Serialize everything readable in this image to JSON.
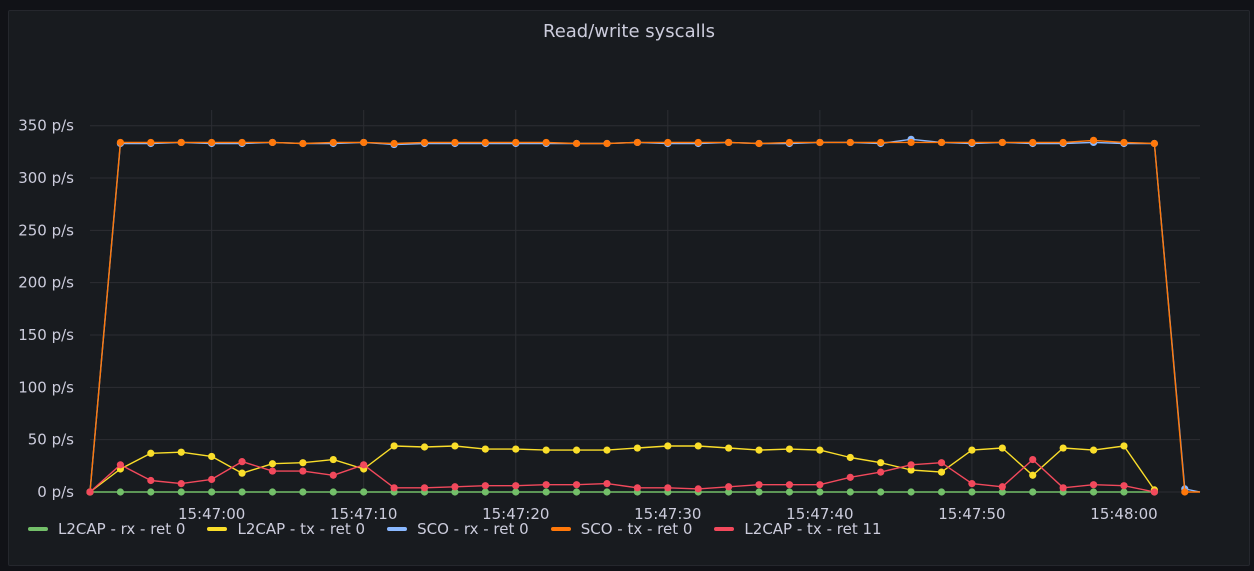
{
  "chart_data": {
    "type": "line",
    "title": "Read/write syscalls",
    "ylim": [
      0,
      365
    ],
    "y_ticks": [
      "0 p/s",
      "50 p/s",
      "100 p/s",
      "150 p/s",
      "200 p/s",
      "250 p/s",
      "300 p/s",
      "350 p/s"
    ],
    "y_tick_values": [
      0,
      50,
      100,
      150,
      200,
      250,
      300,
      350
    ],
    "x_start": "15:46:52",
    "x_end": "15:48:05",
    "x_ticks": [
      "15:47:00",
      "15:47:10",
      "15:47:20",
      "15:47:30",
      "15:47:40",
      "15:47:50",
      "15:48:00"
    ],
    "x_tick_values": [
      "15:47:00",
      "15:47:10",
      "15:47:20",
      "15:47:30",
      "15:47:40",
      "15:47:50",
      "15:48:00"
    ],
    "x": [
      "15:46:52",
      "15:46:54",
      "15:46:56",
      "15:46:58",
      "15:47:00",
      "15:47:02",
      "15:47:04",
      "15:47:06",
      "15:47:08",
      "15:47:10",
      "15:47:12",
      "15:47:14",
      "15:47:16",
      "15:47:18",
      "15:47:20",
      "15:47:22",
      "15:47:24",
      "15:47:26",
      "15:47:28",
      "15:47:30",
      "15:47:32",
      "15:47:34",
      "15:47:36",
      "15:47:38",
      "15:47:40",
      "15:47:42",
      "15:47:44",
      "15:47:46",
      "15:47:48",
      "15:47:50",
      "15:47:52",
      "15:47:54",
      "15:47:56",
      "15:47:58",
      "15:48:00",
      "15:48:02",
      "15:48:04"
    ],
    "grid": true,
    "legend_position": "bottom-left",
    "series": [
      {
        "name": "L2CAP - rx - ret 0",
        "color": "#73bf69",
        "values": [
          0,
          0,
          0,
          0,
          0,
          0,
          0,
          0,
          0,
          0,
          0,
          0,
          0,
          0,
          0,
          0,
          0,
          0,
          0,
          0,
          0,
          0,
          0,
          0,
          0,
          0,
          0,
          0,
          0,
          0,
          0,
          0,
          0,
          0,
          0,
          0,
          null
        ]
      },
      {
        "name": "L2CAP - tx - ret 0",
        "color": "#fade2a",
        "values": [
          0,
          22,
          37,
          38,
          34,
          18,
          27,
          28,
          31,
          22,
          44,
          43,
          44,
          41,
          41,
          40,
          40,
          40,
          42,
          44,
          44,
          42,
          40,
          41,
          40,
          33,
          28,
          21,
          19,
          40,
          42,
          16,
          42,
          40,
          44,
          2,
          null
        ]
      },
      {
        "name": "SCO - rx - ret 0",
        "color": "#8ab8ff",
        "values": [
          0,
          333,
          333,
          334,
          333,
          333,
          334,
          333,
          333,
          334,
          332,
          333,
          333,
          333,
          333,
          333,
          333,
          333,
          334,
          333,
          333,
          334,
          333,
          333,
          334,
          334,
          333,
          337,
          334,
          333,
          334,
          333,
          333,
          334,
          333,
          333,
          3
        ]
      },
      {
        "name": "SCO - tx - ret 0",
        "color": "#ff780a",
        "values": [
          0,
          334,
          334,
          334,
          334,
          334,
          334,
          333,
          334,
          334,
          333,
          334,
          334,
          334,
          334,
          334,
          333,
          333,
          334,
          334,
          334,
          334,
          333,
          334,
          334,
          334,
          334,
          334,
          334,
          334,
          334,
          334,
          334,
          336,
          334,
          333,
          0
        ]
      },
      {
        "name": "L2CAP - tx - ret 11",
        "color": "#f2495c",
        "values": [
          0,
          26,
          11,
          8,
          12,
          29,
          20,
          20,
          16,
          26,
          4,
          4,
          5,
          6,
          6,
          7,
          7,
          8,
          4,
          4,
          3,
          5,
          7,
          7,
          7,
          14,
          19,
          26,
          28,
          8,
          5,
          31,
          4,
          7,
          6,
          0,
          null
        ]
      }
    ]
  }
}
